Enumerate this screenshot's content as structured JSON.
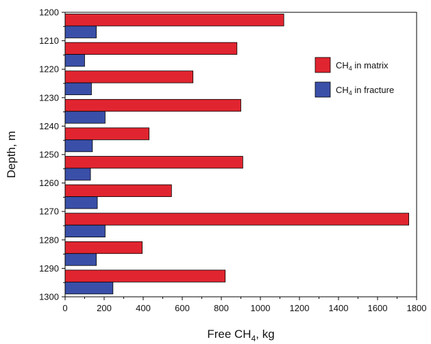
{
  "chart_data": {
    "type": "bar",
    "orientation": "horizontal",
    "xlabel": "Free CH",
    "xlabel_subscript": "4",
    "xlabel_suffix": ", kg",
    "ylabel": "Depth, m",
    "xlim": [
      0,
      1800
    ],
    "ylim": [
      1300,
      1200
    ],
    "xticks": [
      0,
      200,
      400,
      600,
      800,
      1000,
      1200,
      1400,
      1600,
      1800
    ],
    "yticks": [
      1200,
      1210,
      1220,
      1230,
      1240,
      1250,
      1260,
      1270,
      1280,
      1290,
      1300
    ],
    "depth_bins": [
      [
        1200,
        1210
      ],
      [
        1210,
        1220
      ],
      [
        1220,
        1230
      ],
      [
        1230,
        1240
      ],
      [
        1240,
        1250
      ],
      [
        1250,
        1260
      ],
      [
        1260,
        1270
      ],
      [
        1270,
        1280
      ],
      [
        1280,
        1290
      ],
      [
        1290,
        1300
      ]
    ],
    "series": [
      {
        "name": "CH4 in matrix",
        "label_main": "CH",
        "label_sub": "4",
        "label_rest": " in matrix",
        "color": "#e02530",
        "values": [
          1120,
          880,
          655,
          900,
          430,
          910,
          545,
          1760,
          395,
          820
        ]
      },
      {
        "name": "CH4 in fracture",
        "label_main": "CH",
        "label_sub": "4",
        "label_rest": " in fracture",
        "color": "#3a4fa8",
        "values": [
          160,
          100,
          135,
          205,
          140,
          130,
          165,
          205,
          160,
          245
        ]
      }
    ],
    "legend_position": "top-right",
    "grid": false
  }
}
